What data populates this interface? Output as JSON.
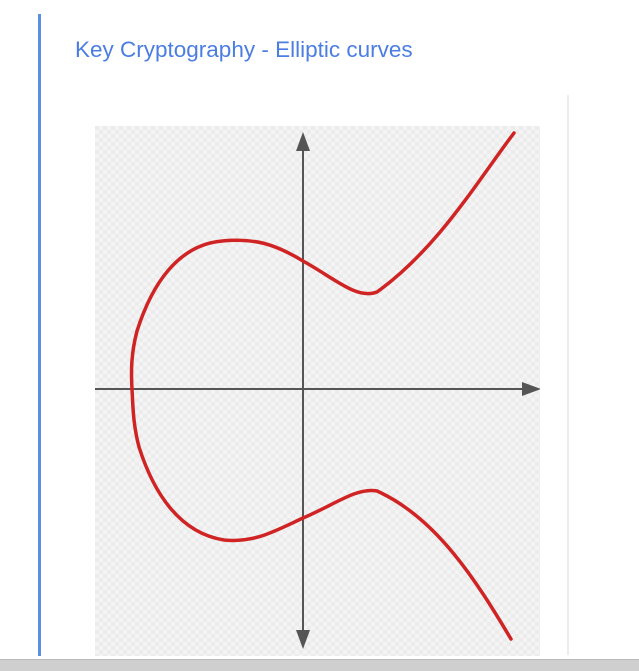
{
  "slide": {
    "title": "Key Cryptography - Elliptic curves"
  },
  "figure": {
    "curve_color": "#d02424",
    "axis_color": "#555555",
    "background_color": "#f3f3f3"
  },
  "colors": {
    "accent": "#4b7de3",
    "rule": "#5b8ee6"
  }
}
